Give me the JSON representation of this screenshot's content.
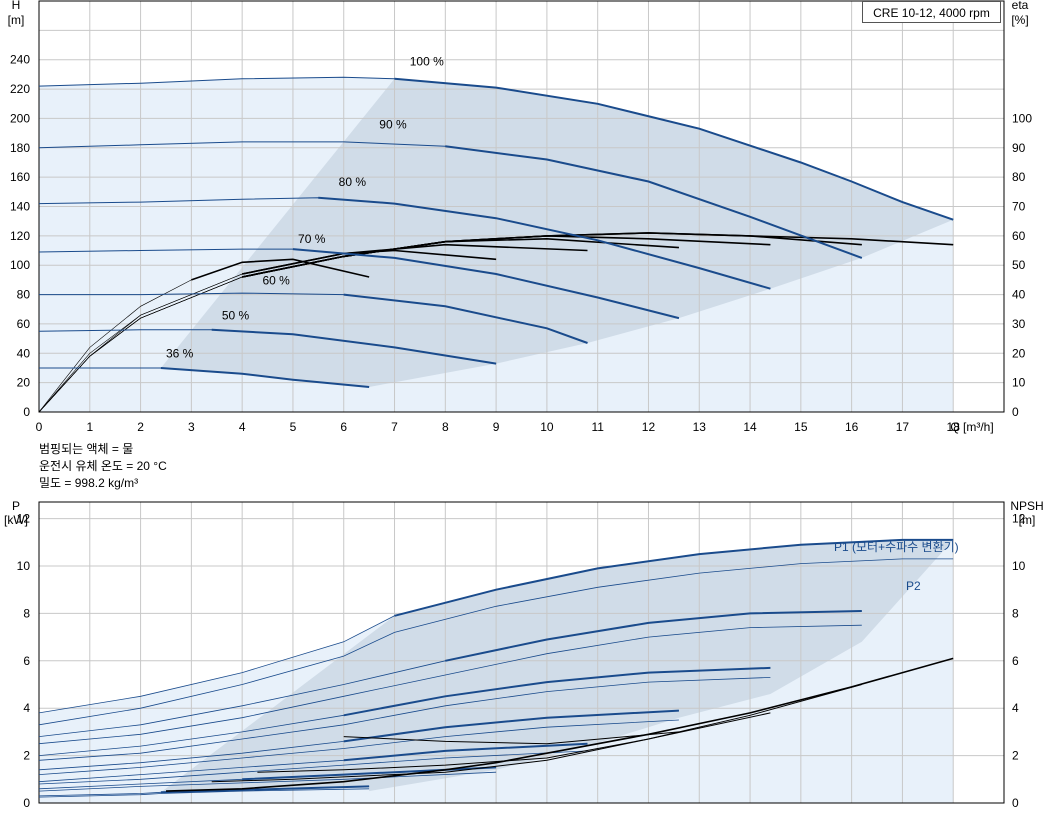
{
  "model_label": "CRE 10-12, 4000 rpm",
  "notes": {
    "line1": "범핑되는 액체 = 물",
    "line2": "운전시 유체 온도 = 20 °C",
    "line3": "밀도 = 998.2 kg/m³"
  },
  "colors": {
    "curve_blue": "#1a4b8c",
    "envelope_fill": "#d0dce8",
    "light_fill": "#e8f1fa",
    "grid": "#c8c8c8"
  },
  "chart_data": [
    {
      "type": "line",
      "name": "head-efficiency",
      "xlabel": "Q [m³/h]",
      "ylabel_left": "H",
      "ylabel_left_unit": "[m]",
      "ylabel_right": "eta",
      "ylabel_right_unit": "[%]",
      "xlim": [
        0,
        19
      ],
      "ylim_left": [
        0,
        280
      ],
      "ylim_right": [
        0,
        140
      ],
      "xticks": [
        0,
        1,
        2,
        3,
        4,
        5,
        6,
        7,
        8,
        9,
        10,
        11,
        12,
        13,
        14,
        15,
        16,
        17,
        18
      ],
      "yticks_left": [
        0,
        20,
        40,
        60,
        80,
        100,
        120,
        140,
        160,
        180,
        200,
        220,
        240
      ],
      "yticks_right": [
        0,
        10,
        20,
        30,
        40,
        50,
        60,
        70,
        80,
        90,
        100
      ],
      "grid": true,
      "head_series": [
        {
          "name": "100 %",
          "x": [
            0,
            2,
            4,
            6,
            7,
            9,
            11,
            13,
            15,
            16,
            17,
            18
          ],
          "y": [
            222,
            224,
            227,
            228,
            227,
            221,
            210,
            193,
            170,
            157,
            143,
            131
          ]
        },
        {
          "name": "90 %",
          "x": [
            0,
            2,
            4,
            6,
            8,
            10,
            12,
            14,
            16.2
          ],
          "y": [
            180,
            182,
            184,
            184,
            181,
            172,
            157,
            133,
            105
          ]
        },
        {
          "name": "80 %",
          "x": [
            0,
            2,
            4,
            5.5,
            7,
            9,
            11,
            13,
            14.4
          ],
          "y": [
            142,
            143,
            145,
            146,
            142,
            132,
            117,
            98,
            84
          ]
        },
        {
          "name": "70 %",
          "x": [
            0,
            2,
            4,
            5,
            7,
            9,
            11,
            12.6
          ],
          "y": [
            109,
            110,
            111,
            111,
            105,
            94,
            78,
            64
          ]
        },
        {
          "name": "60 %",
          "x": [
            0,
            2,
            4,
            6,
            8,
            10,
            10.8
          ],
          "y": [
            80,
            80,
            81,
            80,
            72,
            57,
            47
          ]
        },
        {
          "name": "50 %",
          "x": [
            0,
            2,
            3.4,
            5,
            7,
            9
          ],
          "y": [
            55,
            56,
            56,
            53,
            44,
            33
          ]
        },
        {
          "name": "36 %",
          "x": [
            0,
            1,
            2,
            2.4,
            4,
            5,
            6.5
          ],
          "y": [
            30,
            30,
            30,
            30,
            26,
            22,
            17
          ]
        }
      ],
      "efficiency_series": [
        {
          "name": "eta 100 %",
          "x": [
            0,
            1,
            2,
            4,
            6,
            8,
            10,
            12,
            14,
            16,
            18
          ],
          "y": [
            0,
            19,
            32,
            46,
            53,
            58,
            60,
            61,
            60,
            59,
            57
          ]
        },
        {
          "name": "eta 90 %",
          "x": [
            0,
            1,
            2,
            4,
            6,
            8,
            10,
            12,
            14,
            16.2
          ],
          "y": [
            0,
            19,
            32,
            46,
            53,
            58,
            60,
            61,
            60,
            57
          ]
        },
        {
          "name": "eta 80 %",
          "x": [
            0,
            1,
            2,
            4,
            6,
            8,
            10,
            12,
            14.4
          ],
          "y": [
            0,
            19,
            32,
            46,
            53,
            58,
            60,
            59,
            57
          ]
        },
        {
          "name": "eta 70 %",
          "x": [
            0,
            1,
            2,
            4,
            6,
            8,
            10,
            12.6
          ],
          "y": [
            0,
            19,
            32,
            46,
            53,
            58,
            59,
            56
          ]
        },
        {
          "name": "eta 60 %",
          "x": [
            0,
            1,
            2,
            4,
            6,
            8,
            10.8
          ],
          "y": [
            0,
            19,
            33,
            47,
            54,
            57,
            55
          ]
        },
        {
          "name": "eta 50 %",
          "x": [
            0,
            1,
            2,
            4,
            6,
            7,
            9
          ],
          "y": [
            0,
            20,
            33,
            47,
            54,
            55,
            52
          ]
        },
        {
          "name": "eta 36 %",
          "x": [
            0,
            1,
            2,
            3,
            4,
            5,
            6.5
          ],
          "y": [
            0,
            22,
            36,
            45,
            51,
            52,
            46
          ]
        }
      ],
      "percent_labels": [
        "100 %",
        "90 %",
        "80 %",
        "70 %",
        "60 %",
        "50 %",
        "36 %"
      ]
    },
    {
      "type": "line",
      "name": "power-npsh",
      "ylabel_left": "P",
      "ylabel_left_unit": "[kW]",
      "ylabel_right": "NPSH",
      "ylabel_right_unit": "[m]",
      "xlim": [
        0,
        19
      ],
      "ylim_left": [
        0,
        12.7
      ],
      "yticks_left": [
        0,
        2,
        4,
        6,
        8,
        10,
        12
      ],
      "yticks_right": [
        0,
        2,
        4,
        6,
        8,
        10,
        12
      ],
      "grid": true,
      "p1_label": "P1 (모터+수파수 변환기)",
      "p2_label": "P2",
      "p1_series": [
        {
          "name": "P1 100 %",
          "x": [
            0,
            2,
            4,
            6,
            7,
            9,
            11,
            13,
            15,
            17,
            18
          ],
          "y": [
            3.8,
            4.5,
            5.5,
            6.8,
            7.9,
            9.0,
            9.9,
            10.5,
            10.9,
            11.1,
            11.1
          ]
        },
        {
          "name": "P1 90 %",
          "x": [
            0,
            2,
            4,
            6,
            8,
            10,
            12,
            14,
            16.2
          ],
          "y": [
            2.8,
            3.3,
            4.1,
            5.0,
            6.0,
            6.9,
            7.6,
            8.0,
            8.1
          ]
        },
        {
          "name": "P1 80 %",
          "x": [
            0,
            2,
            4,
            6,
            8,
            10,
            12,
            14.4
          ],
          "y": [
            2.0,
            2.4,
            3.0,
            3.7,
            4.5,
            5.1,
            5.5,
            5.7
          ]
        },
        {
          "name": "P1 70 %",
          "x": [
            0,
            2,
            4,
            6,
            8,
            10,
            12.6
          ],
          "y": [
            1.4,
            1.7,
            2.1,
            2.6,
            3.2,
            3.6,
            3.9
          ]
        },
        {
          "name": "P1 60 %",
          "x": [
            0,
            2,
            4,
            6,
            8,
            10.8
          ],
          "y": [
            0.9,
            1.2,
            1.5,
            1.8,
            2.2,
            2.5
          ]
        },
        {
          "name": "P1 50 %",
          "x": [
            0,
            2,
            4,
            6,
            7,
            9
          ],
          "y": [
            0.6,
            0.8,
            1.0,
            1.2,
            1.3,
            1.5
          ]
        },
        {
          "name": "P1 36 %",
          "x": [
            0,
            2,
            2.4,
            4,
            6.5
          ],
          "y": [
            0.3,
            0.4,
            0.45,
            0.55,
            0.7
          ]
        }
      ],
      "p2_series": [
        {
          "name": "P2 100 %",
          "x": [
            0,
            2,
            4,
            6,
            7,
            9,
            11,
            13,
            15,
            17,
            18
          ],
          "y": [
            3.3,
            4.0,
            5.0,
            6.2,
            7.2,
            8.3,
            9.1,
            9.7,
            10.1,
            10.3,
            10.3
          ]
        },
        {
          "name": "P2 90 %",
          "x": [
            0,
            2,
            4,
            6,
            8,
            10,
            12,
            14,
            16.2
          ],
          "y": [
            2.5,
            2.9,
            3.6,
            4.5,
            5.4,
            6.3,
            7.0,
            7.4,
            7.5
          ]
        },
        {
          "name": "P2 80 %",
          "x": [
            0,
            2,
            4,
            6,
            8,
            10,
            12,
            14.4
          ],
          "y": [
            1.8,
            2.1,
            2.7,
            3.3,
            4.1,
            4.7,
            5.1,
            5.3
          ]
        },
        {
          "name": "P2 70 %",
          "x": [
            0,
            2,
            4,
            6,
            8,
            10,
            12.6
          ],
          "y": [
            1.2,
            1.5,
            1.9,
            2.3,
            2.8,
            3.2,
            3.5
          ]
        },
        {
          "name": "P2 60 %",
          "x": [
            0,
            2,
            4,
            6,
            8,
            10.8
          ],
          "y": [
            0.8,
            1.0,
            1.3,
            1.6,
            1.9,
            2.2
          ]
        },
        {
          "name": "P2 50 %",
          "x": [
            0,
            2,
            4,
            6,
            7,
            9
          ],
          "y": [
            0.5,
            0.7,
            0.85,
            1.0,
            1.1,
            1.3
          ]
        },
        {
          "name": "P2 36 %",
          "x": [
            0,
            2,
            2.4,
            4,
            6.5
          ],
          "y": [
            0.25,
            0.35,
            0.4,
            0.5,
            0.6
          ]
        }
      ],
      "npsh_series": [
        {
          "name": "NPSH",
          "x": [
            2.5,
            4,
            6,
            8,
            9,
            10,
            12,
            14,
            16,
            18
          ],
          "y": [
            0.5,
            0.6,
            0.9,
            1.4,
            1.7,
            2.1,
            2.9,
            3.8,
            4.9,
            6.1
          ]
        },
        {
          "name": "NPSH 90 %",
          "x": [
            3.4,
            5,
            6,
            8,
            10,
            12,
            14,
            16.2
          ],
          "y": [
            0.9,
            1.0,
            1.1,
            1.3,
            1.8,
            2.7,
            3.7,
            5.0
          ]
        },
        {
          "name": "NPSH 80 %",
          "x": [
            4.3,
            6,
            8,
            10,
            12,
            14.4
          ],
          "y": [
            1.3,
            1.4,
            1.6,
            1.9,
            2.7,
            3.8
          ]
        },
        {
          "name": "NPSH 70 %",
          "x": [
            6,
            8,
            10,
            12.6
          ],
          "y": [
            2.8,
            2.6,
            2.5,
            3.0
          ]
        }
      ]
    }
  ]
}
